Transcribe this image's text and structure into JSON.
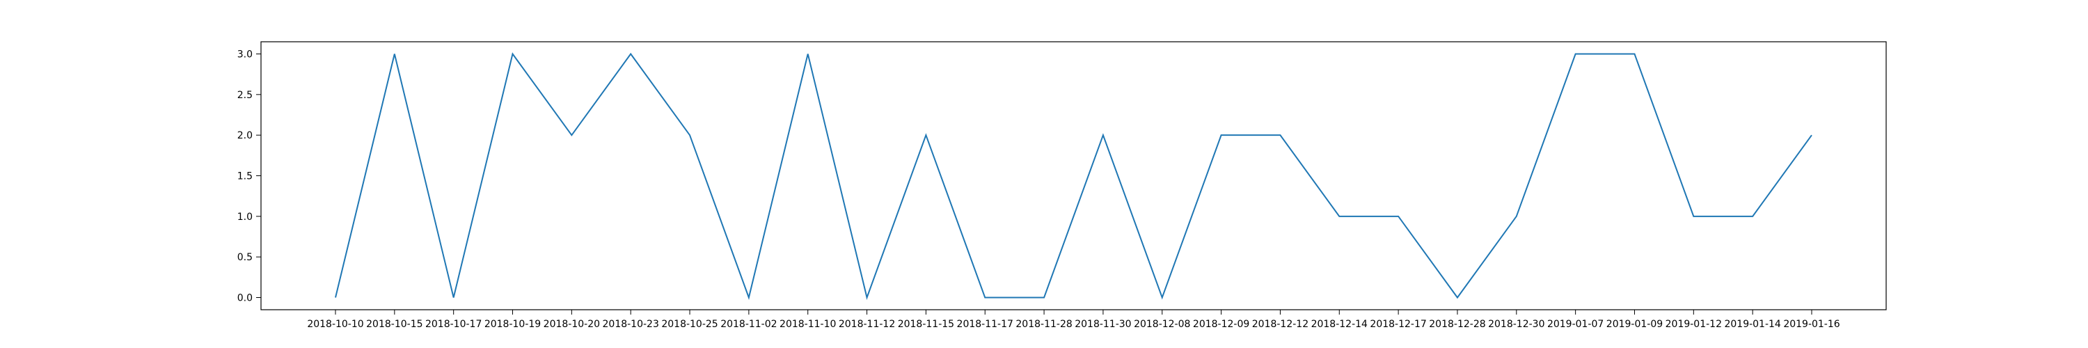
{
  "chart_data": {
    "type": "line",
    "title": "",
    "xlabel": "",
    "ylabel": "",
    "x": [
      "2018-10-10",
      "2018-10-15",
      "2018-10-17",
      "2018-10-19",
      "2018-10-20",
      "2018-10-23",
      "2018-10-25",
      "2018-11-02",
      "2018-11-10",
      "2018-11-12",
      "2018-11-15",
      "2018-11-17",
      "2018-11-28",
      "2018-11-30",
      "2018-12-08",
      "2018-12-09",
      "2018-12-12",
      "2018-12-14",
      "2018-12-17",
      "2018-12-28",
      "2018-12-30",
      "2019-01-07",
      "2019-01-09",
      "2019-01-12",
      "2019-01-14",
      "2019-01-16"
    ],
    "series": [
      {
        "values": [
          0,
          3,
          0,
          3,
          2,
          3,
          2,
          0,
          3,
          0,
          2,
          0,
          0,
          2,
          0,
          2,
          2,
          1,
          1,
          0,
          1,
          3,
          3,
          1,
          1,
          2
        ]
      }
    ],
    "ylim": [
      -0.15,
      3.15
    ],
    "yticks": [
      "0.0",
      "0.5",
      "1.0",
      "1.5",
      "2.0",
      "2.5",
      "3.0"
    ],
    "grid": false,
    "legend": "none",
    "colors": {
      "line": "#1f77b4",
      "axes": "#000000",
      "background": "#ffffff"
    }
  }
}
